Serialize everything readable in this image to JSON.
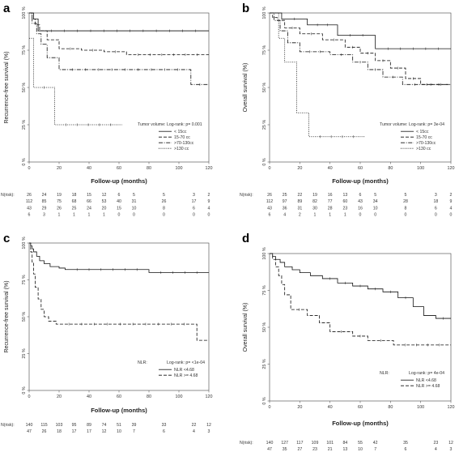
{
  "chart_data": [
    {
      "panel": "a",
      "type": "line",
      "xlabel": "Follow-up (months)",
      "ylabel": "Recurrence-free survival (%)",
      "xlim": [
        0,
        120
      ],
      "ylim": [
        0,
        1
      ],
      "xticks": [
        "0",
        "20",
        "40",
        "60",
        "80",
        "100",
        "120"
      ],
      "yticks": [
        "0 %",
        "25 %",
        "50 %",
        "75 %",
        "100 %"
      ],
      "legend_title": "Tumor volume:",
      "test_label": "Log-rank: p= 0.001",
      "legend_position": "bottom-right",
      "series": [
        {
          "name": "< 15cc",
          "style": "solid",
          "x": [
            0,
            3,
            3,
            6,
            6,
            120
          ],
          "y": [
            1.0,
            1.0,
            0.96,
            0.96,
            0.88,
            0.88
          ]
        },
        {
          "name": "15-70 cc",
          "style": "dash",
          "x": [
            0,
            2,
            2,
            4,
            4,
            7,
            7,
            12,
            12,
            20,
            20,
            35,
            35,
            50,
            50,
            65,
            65,
            120
          ],
          "y": [
            1.0,
            1.0,
            0.96,
            0.96,
            0.92,
            0.92,
            0.88,
            0.88,
            0.82,
            0.82,
            0.76,
            0.76,
            0.75,
            0.75,
            0.74,
            0.74,
            0.72,
            0.72
          ]
        },
        {
          "name": ">70-130cc",
          "style": "dashdot",
          "x": [
            0,
            2,
            2,
            5,
            5,
            8,
            8,
            12,
            12,
            20,
            20,
            108,
            108,
            120
          ],
          "y": [
            1.0,
            1.0,
            0.93,
            0.93,
            0.86,
            0.86,
            0.79,
            0.79,
            0.7,
            0.7,
            0.62,
            0.62,
            0.52,
            0.52
          ]
        },
        {
          "name": ">130 cc",
          "style": "dot",
          "x": [
            0,
            3,
            3,
            17,
            17,
            62
          ],
          "y": [
            0.83,
            0.83,
            0.5,
            0.5,
            0.25,
            0.25
          ]
        }
      ],
      "risk_table": {
        "label": "N(risk):",
        "times": [
          0,
          10,
          20,
          30,
          40,
          50,
          60,
          70,
          80,
          90,
          100,
          110,
          120
        ],
        "rows": [
          [
            "26",
            "24",
            "19",
            "18",
            "15",
            "12",
            "6",
            "5",
            "",
            "5",
            "",
            "3",
            "2"
          ],
          [
            "112",
            "85",
            "75",
            "68",
            "66",
            "53",
            "40",
            "31",
            "",
            "26",
            "",
            "17",
            "9"
          ],
          [
            "43",
            "29",
            "26",
            "25",
            "24",
            "20",
            "15",
            "10",
            "",
            "8",
            "",
            "6",
            "4"
          ],
          [
            "6",
            "3",
            "1",
            "1",
            "1",
            "1",
            "0",
            "0",
            "",
            "0",
            "",
            "0",
            "0"
          ]
        ]
      }
    },
    {
      "panel": "b",
      "type": "line",
      "xlabel": "Follow-up (months)",
      "ylabel": "Overall survival (%)",
      "xlim": [
        0,
        120
      ],
      "ylim": [
        0,
        1
      ],
      "xticks": [
        "0",
        "20",
        "40",
        "60",
        "80",
        "100",
        "120"
      ],
      "yticks": [
        "0 %",
        "25 %",
        "50 %",
        "75 %",
        "100 %"
      ],
      "legend_title": "Tumor volume:",
      "test_label": "Log-rank: p= 3e-04",
      "legend_position": "bottom-right",
      "series": [
        {
          "name": "< 15cc",
          "style": "solid",
          "x": [
            0,
            8,
            8,
            25,
            25,
            45,
            45,
            70,
            70,
            120
          ],
          "y": [
            1.0,
            1.0,
            0.96,
            0.96,
            0.92,
            0.92,
            0.85,
            0.85,
            0.76,
            0.76
          ]
        },
        {
          "name": "15-70 cc",
          "style": "dash",
          "x": [
            0,
            2,
            2,
            5,
            5,
            10,
            10,
            20,
            20,
            35,
            35,
            50,
            50,
            60,
            60,
            70,
            70,
            80,
            80,
            90,
            90,
            100,
            100,
            120
          ],
          "y": [
            1.0,
            1.0,
            0.97,
            0.97,
            0.95,
            0.95,
            0.9,
            0.9,
            0.86,
            0.86,
            0.82,
            0.82,
            0.77,
            0.77,
            0.73,
            0.73,
            0.68,
            0.68,
            0.63,
            0.63,
            0.56,
            0.56,
            0.52,
            0.52
          ]
        },
        {
          "name": ">70-130cc",
          "style": "dashdot",
          "x": [
            0,
            3,
            3,
            7,
            7,
            12,
            12,
            20,
            20,
            40,
            40,
            55,
            55,
            65,
            65,
            75,
            75,
            88,
            88,
            120
          ],
          "y": [
            1.0,
            1.0,
            0.95,
            0.95,
            0.88,
            0.88,
            0.8,
            0.8,
            0.74,
            0.74,
            0.72,
            0.72,
            0.67,
            0.67,
            0.62,
            0.62,
            0.57,
            0.57,
            0.52,
            0.52
          ]
        },
        {
          "name": ">130 cc",
          "style": "dot",
          "x": [
            0,
            6,
            6,
            10,
            10,
            18,
            18,
            26,
            26,
            63
          ],
          "y": [
            1.0,
            1.0,
            0.83,
            0.83,
            0.67,
            0.67,
            0.33,
            0.33,
            0.17,
            0.17
          ]
        }
      ],
      "risk_table": {
        "label": "N(risk):",
        "times": [
          0,
          10,
          20,
          30,
          40,
          50,
          60,
          70,
          80,
          90,
          100,
          110,
          120
        ],
        "rows": [
          [
            "26",
            "25",
            "22",
            "19",
            "16",
            "13",
            "6",
            "5",
            "",
            "5",
            "",
            "3",
            "2"
          ],
          [
            "112",
            "97",
            "89",
            "82",
            "77",
            "60",
            "43",
            "34",
            "",
            "28",
            "",
            "18",
            "9"
          ],
          [
            "43",
            "36",
            "31",
            "30",
            "28",
            "23",
            "16",
            "10",
            "",
            "8",
            "",
            "6",
            "4"
          ],
          [
            "6",
            "4",
            "2",
            "1",
            "1",
            "1",
            "0",
            "0",
            "",
            "0",
            "",
            "0",
            "0"
          ]
        ]
      }
    },
    {
      "panel": "c",
      "type": "line",
      "xlabel": "Follow-up (months)",
      "ylabel": "Recurrence-free survival (%)",
      "xlim": [
        0,
        120
      ],
      "ylim": [
        0,
        1
      ],
      "xticks": [
        "0",
        "20",
        "40",
        "60",
        "80",
        "100",
        "120"
      ],
      "yticks": [
        "0 %",
        "25 %",
        "50 %",
        "75 %",
        "100 %"
      ],
      "legend_title": "NLR:",
      "test_label": "Log-rank: p= <1e-04",
      "legend_position": "bottom-right",
      "series": [
        {
          "name": "NLR <4.68",
          "style": "solid",
          "x": [
            0,
            1,
            1,
            2,
            2,
            3,
            3,
            5,
            5,
            7,
            7,
            10,
            10,
            14,
            14,
            20,
            20,
            24,
            24,
            80,
            80,
            120
          ],
          "y": [
            1.0,
            1.0,
            0.98,
            0.98,
            0.96,
            0.96,
            0.94,
            0.94,
            0.91,
            0.91,
            0.88,
            0.88,
            0.86,
            0.86,
            0.84,
            0.84,
            0.83,
            0.83,
            0.82,
            0.82,
            0.8,
            0.8
          ]
        },
        {
          "name": "NLR >= 4.68",
          "style": "dash",
          "x": [
            0,
            1,
            1,
            2,
            2,
            3,
            3,
            4,
            4,
            6,
            6,
            8,
            8,
            10,
            10,
            13,
            13,
            18,
            18,
            112,
            112,
            120
          ],
          "y": [
            1.0,
            1.0,
            0.94,
            0.94,
            0.87,
            0.87,
            0.79,
            0.79,
            0.7,
            0.7,
            0.62,
            0.62,
            0.55,
            0.55,
            0.5,
            0.5,
            0.47,
            0.47,
            0.45,
            0.45,
            0.34,
            0.34
          ]
        }
      ],
      "risk_table": {
        "label": "N(risk):",
        "times": [
          0,
          10,
          20,
          30,
          40,
          50,
          60,
          70,
          80,
          90,
          100,
          110,
          120
        ],
        "rows": [
          [
            "140",
            "115",
            "103",
            "95",
            "89",
            "74",
            "51",
            "39",
            "",
            "33",
            "",
            "22",
            "12"
          ],
          [
            "47",
            "26",
            "18",
            "17",
            "17",
            "12",
            "10",
            "7",
            "",
            "6",
            "",
            "4",
            "3"
          ]
        ]
      }
    },
    {
      "panel": "d",
      "type": "line",
      "xlabel": "Follow-up (months)",
      "ylabel": "Overall survival (%)",
      "xlim": [
        0,
        120
      ],
      "ylim": [
        0,
        1
      ],
      "xticks": [
        "0",
        "20",
        "40",
        "60",
        "80",
        "100",
        "120"
      ],
      "yticks": [
        "0 %",
        "25 %",
        "50 %",
        "75 %",
        "100 %"
      ],
      "legend_title": "NLR:",
      "test_label": "Log-rank: p= 4e-04",
      "legend_position": "bottom-right",
      "series": [
        {
          "name": "NLR <4.68",
          "style": "solid",
          "x": [
            0,
            2,
            2,
            4,
            4,
            7,
            7,
            10,
            10,
            15,
            15,
            20,
            20,
            27,
            27,
            35,
            35,
            45,
            45,
            55,
            55,
            65,
            65,
            75,
            75,
            85,
            85,
            95,
            95,
            102,
            102,
            110,
            110,
            120
          ],
          "y": [
            1.0,
            1.0,
            0.98,
            0.98,
            0.96,
            0.96,
            0.94,
            0.94,
            0.91,
            0.91,
            0.89,
            0.89,
            0.87,
            0.87,
            0.85,
            0.85,
            0.83,
            0.83,
            0.8,
            0.8,
            0.78,
            0.78,
            0.76,
            0.76,
            0.74,
            0.74,
            0.7,
            0.7,
            0.64,
            0.64,
            0.58,
            0.58,
            0.56,
            0.56
          ]
        },
        {
          "name": "NLR >= 4.68",
          "style": "dash",
          "x": [
            0,
            2,
            2,
            4,
            4,
            6,
            6,
            8,
            8,
            10,
            10,
            14,
            14,
            25,
            25,
            33,
            33,
            40,
            40,
            55,
            55,
            65,
            65,
            82,
            82,
            120
          ],
          "y": [
            1.0,
            1.0,
            0.96,
            0.96,
            0.91,
            0.91,
            0.85,
            0.85,
            0.79,
            0.79,
            0.72,
            0.72,
            0.62,
            0.62,
            0.58,
            0.58,
            0.53,
            0.53,
            0.47,
            0.47,
            0.44,
            0.44,
            0.41,
            0.41,
            0.38,
            0.38
          ]
        }
      ],
      "risk_table": {
        "label": "N(risk):",
        "times": [
          0,
          10,
          20,
          30,
          40,
          50,
          60,
          70,
          80,
          90,
          100,
          110,
          120
        ],
        "rows": [
          [
            "140",
            "127",
            "117",
            "109",
            "101",
            "84",
            "55",
            "42",
            "",
            "35",
            "",
            "23",
            "12"
          ],
          [
            "47",
            "35",
            "27",
            "23",
            "21",
            "13",
            "10",
            "7",
            "",
            "6",
            "",
            "4",
            "3"
          ]
        ]
      }
    }
  ]
}
